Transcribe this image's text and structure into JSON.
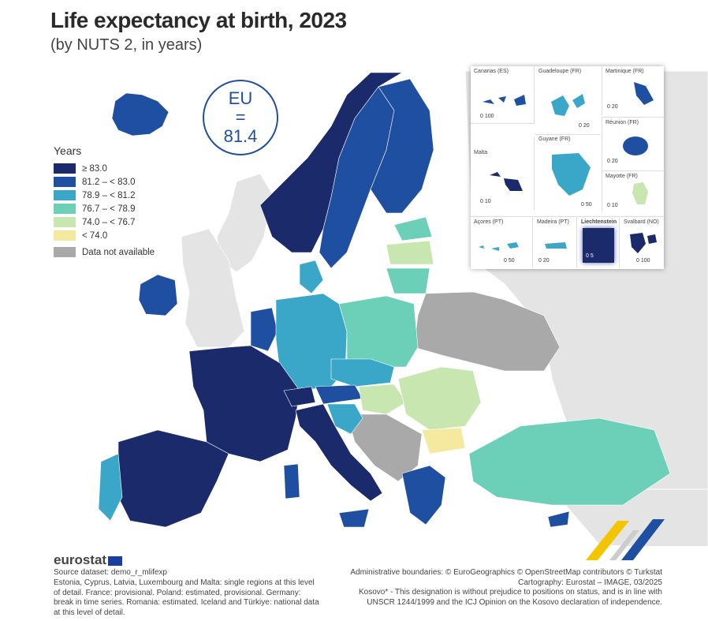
{
  "header": {
    "title": "Life expectancy at birth, 2023",
    "subtitle": "(by NUTS 2, in years)"
  },
  "eu_badge": {
    "line1": "EU",
    "line2": "=",
    "line3": "81.4"
  },
  "legend": {
    "title": "Years",
    "items": [
      {
        "label": "≥ 83.0",
        "color": "#1b2a6b"
      },
      {
        "label": "81.2 – < 83.0",
        "color": "#1f4fa0"
      },
      {
        "label": "78.9 – < 81.2",
        "color": "#3aa7c9"
      },
      {
        "label": "76.7 – < 78.9",
        "color": "#6ccfb8"
      },
      {
        "label": "74.0 – < 76.7",
        "color": "#c8e6b0"
      },
      {
        "label": "< 74.0",
        "color": "#f5e9a0"
      },
      {
        "label": "Data not available",
        "color": "#a9a9a9"
      }
    ]
  },
  "insets": [
    {
      "label": "Canarias (ES)",
      "scale": "0  100"
    },
    {
      "label": "Guadeloupe (FR)",
      "scale": "0  20"
    },
    {
      "label": "Martinique (FR)",
      "scale": "0  20"
    },
    {
      "label": "Réunion (FR)",
      "scale": "0  20"
    },
    {
      "label": "Malta",
      "scale": "0  10"
    },
    {
      "label": "Guyane (FR)",
      "scale": "0 50"
    },
    {
      "label": "Mayotte (FR)",
      "scale": "0 10"
    },
    {
      "label": "Açores (PT)",
      "scale": "0  50"
    },
    {
      "label": "Madeira (PT)",
      "scale": "0 20"
    },
    {
      "label": "Liechtenstein",
      "scale": "0  5"
    },
    {
      "label": "Svalbard (NO)",
      "scale": "0 100"
    }
  ],
  "footer": {
    "logo": "eurostat",
    "source": "Source dataset: demo_r_mlifexp",
    "notes": "Estonia, Cyprus, Latvia, Luxembourg and Malta: single regions at this level of detail. France: provisional. Poland: estimated, provisional. Germany: break in time series. Romania: estimated. Iceland and Türkiye: national data at this level of detail.",
    "credits": [
      "Administrative boundaries: © EuroGeographics © OpenStreetMap contributors © Turkstat",
      "Cartography: Eurostat – IMAGE, 03/2025",
      "Kosovo* - This designation is without prejudice to positions on status, and is in line with",
      "UNSCR 1244/1999 and the ICJ Opinion on the Kosovo declaration of independence."
    ]
  },
  "colors": {
    "c1": "#1b2a6b",
    "c2": "#1f4fa0",
    "c3": "#3aa7c9",
    "c4": "#6ccfb8",
    "c5": "#c8e6b0",
    "c6": "#f5e9a0",
    "na": "#a9a9a9",
    "bg_land": "#e4e4e4"
  }
}
